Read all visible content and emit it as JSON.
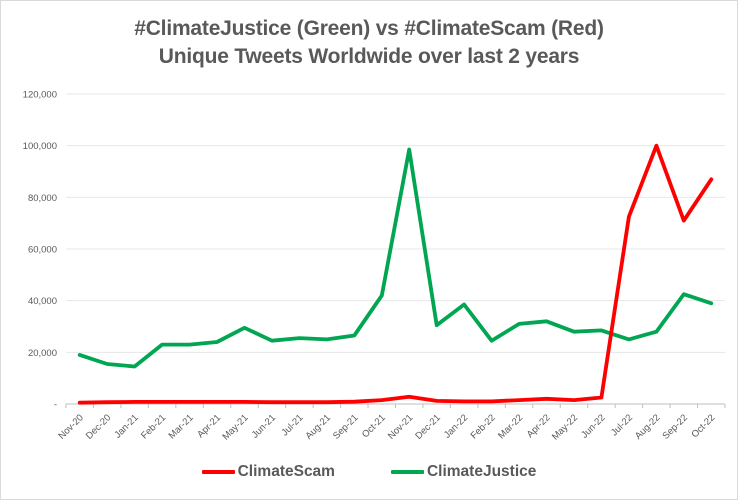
{
  "window": {
    "title_line1": "#ClimateJustice (Green) vs #ClimateScam (Red)",
    "title_line2": "Unique Tweets Worldwide over last 2 years"
  },
  "chart_data": {
    "type": "line",
    "title": "#ClimateJustice (Green) vs #ClimateScam (Red)",
    "subtitle": "Unique Tweets Worldwide over last 2 years",
    "xlabel": "",
    "ylabel": "",
    "ylim": [
      0,
      120000
    ],
    "grid": true,
    "legend_position": "bottom",
    "categories": [
      "Nov-20",
      "Dec-20",
      "Jan-21",
      "Feb-21",
      "Mar-21",
      "Apr-21",
      "May-21",
      "Jun-21",
      "Jul-21",
      "Aug-21",
      "Sep-21",
      "Oct-21",
      "Nov-21",
      "Dec-21",
      "Jan-22",
      "Feb-22",
      "Mar-22",
      "Apr-22",
      "May-22",
      "Jun-22",
      "Jul-22",
      "Aug-22",
      "Sep-22",
      "Oct-22"
    ],
    "series": [
      {
        "name": "ClimateScam",
        "color": "#ff0000",
        "values": [
          500,
          700,
          800,
          800,
          800,
          800,
          800,
          700,
          700,
          700,
          900,
          1500,
          2800,
          1200,
          1000,
          1000,
          1500,
          2000,
          1500,
          2500,
          72500,
          100000,
          71000,
          87000
        ]
      },
      {
        "name": "ClimateJustice",
        "color": "#00a651",
        "values": [
          19000,
          15500,
          14500,
          23000,
          23000,
          24000,
          29500,
          24500,
          25500,
          25000,
          26500,
          42000,
          98500,
          30500,
          38500,
          24500,
          31000,
          32000,
          28000,
          28500,
          25000,
          28000,
          42500,
          39000
        ]
      }
    ],
    "yticks": [
      {
        "label": "-",
        "value": 0
      },
      {
        "label": "20,000",
        "value": 20000
      },
      {
        "label": "40,000",
        "value": 40000
      },
      {
        "label": "60,000",
        "value": 60000
      },
      {
        "label": "80,000",
        "value": 80000
      },
      {
        "label": "100,000",
        "value": 100000
      },
      {
        "label": "120,000",
        "value": 120000
      }
    ],
    "colors": {
      "title_text": "#595959",
      "axis_label_text": "#595959",
      "gridline": "#e7e7e7",
      "axis_line": "#bfbfbf",
      "background": "#ffffff"
    }
  }
}
